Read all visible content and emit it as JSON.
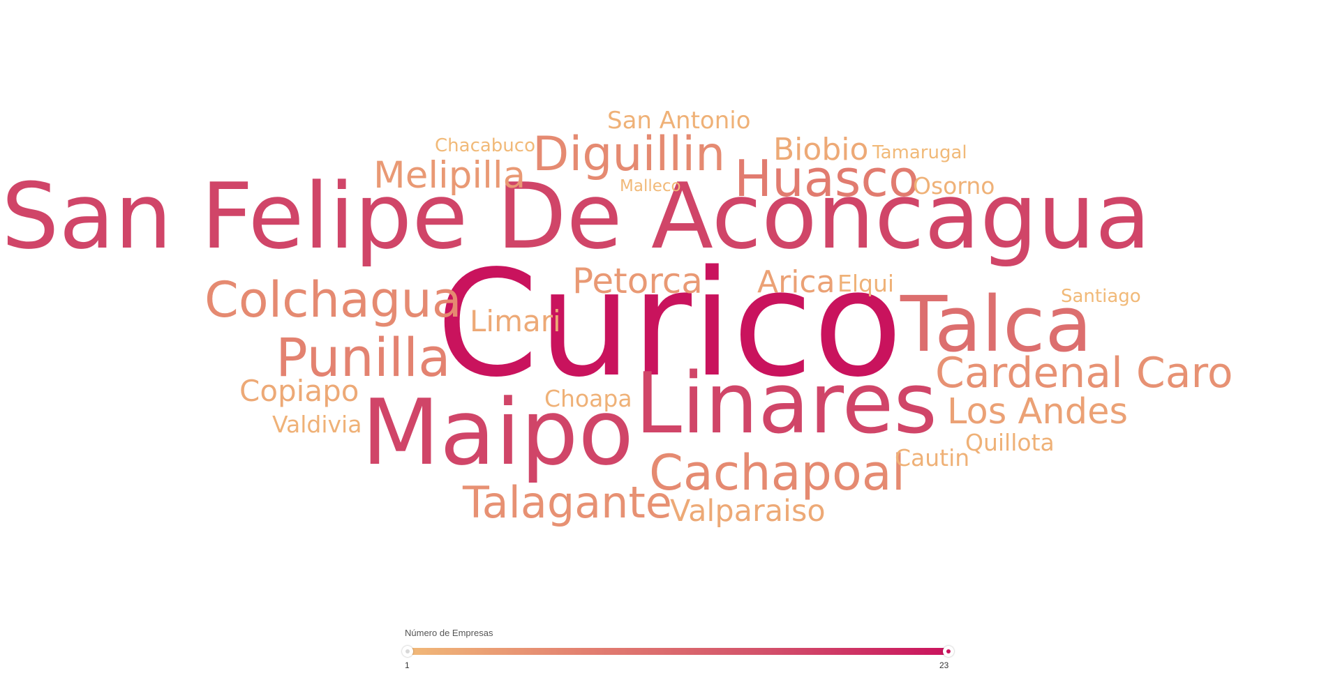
{
  "chart_data": {
    "type": "wordcloud",
    "title": "",
    "color_scale": {
      "label": "Número de Empresas",
      "min": 1,
      "max": 23,
      "colors": [
        "#f1b978",
        "#e27f70",
        "#d2506a",
        "#c9135d"
      ]
    },
    "words": [
      {
        "text": "Curico",
        "value": 23
      },
      {
        "text": "San Felipe De Aconcagua",
        "value": 17
      },
      {
        "text": "Linares",
        "value": 17
      },
      {
        "text": "Maipo",
        "value": 17
      },
      {
        "text": "Talca",
        "value": 11
      },
      {
        "text": "Huasco",
        "value": 9
      },
      {
        "text": "Colchagua",
        "value": 7
      },
      {
        "text": "Punilla",
        "value": 8
      },
      {
        "text": "Diguillin",
        "value": 7
      },
      {
        "text": "Cachapoal",
        "value": 7
      },
      {
        "text": "Cardenal Caro",
        "value": 6
      },
      {
        "text": "Talagante",
        "value": 6
      },
      {
        "text": "Petorca",
        "value": 5
      },
      {
        "text": "Melipilla",
        "value": 5
      },
      {
        "text": "Los Andes",
        "value": 4
      },
      {
        "text": "Arica",
        "value": 4
      },
      {
        "text": "Limari",
        "value": 3
      },
      {
        "text": "Copiapo",
        "value": 3
      },
      {
        "text": "Biobio",
        "value": 3
      },
      {
        "text": "Valparaiso",
        "value": 3
      },
      {
        "text": "Osorno",
        "value": 2
      },
      {
        "text": "Choapa",
        "value": 2
      },
      {
        "text": "Elqui",
        "value": 2
      },
      {
        "text": "San Antonio",
        "value": 2
      },
      {
        "text": "Quillota",
        "value": 2
      },
      {
        "text": "Cautin",
        "value": 2
      },
      {
        "text": "Valdivia",
        "value": 2
      },
      {
        "text": "Chacabuco",
        "value": 1
      },
      {
        "text": "Tamarugal",
        "value": 1
      },
      {
        "text": "Santiago",
        "value": 1
      },
      {
        "text": "Malleco",
        "value": 1
      }
    ]
  }
}
